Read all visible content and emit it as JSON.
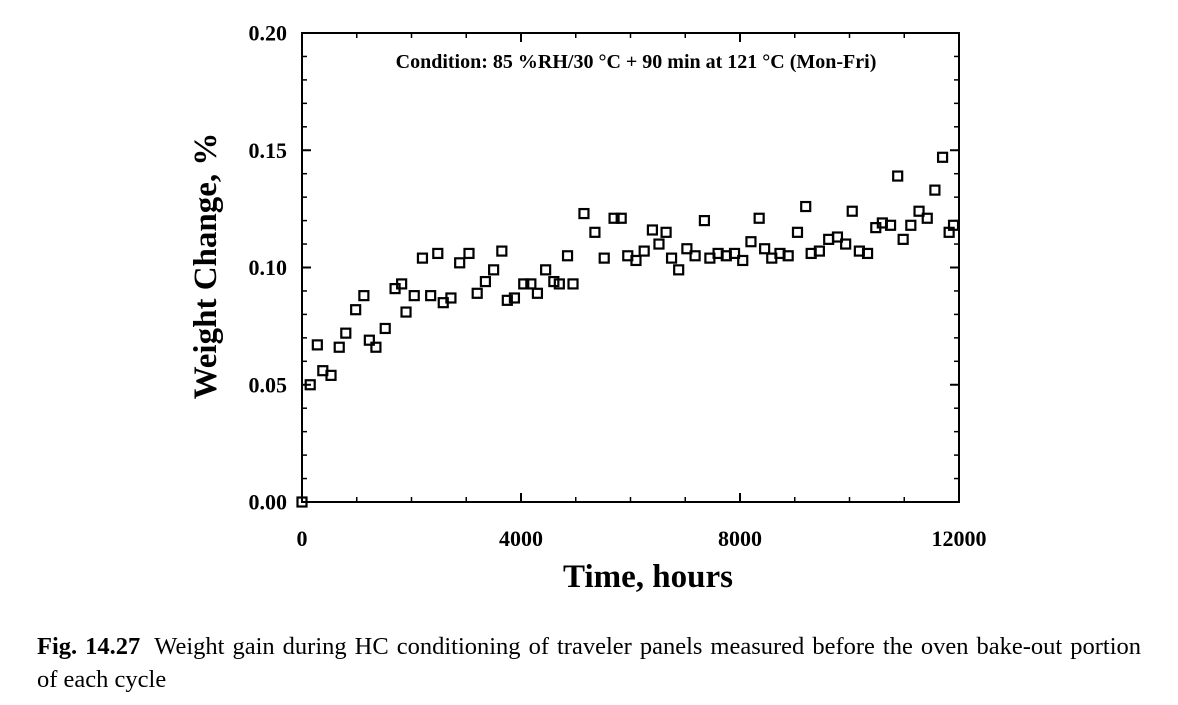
{
  "chart_data": {
    "type": "scatter",
    "title": "",
    "annotation": "Condition: 85 %RH/30 °C  +  90 min at 121 °C (Mon-Fri)",
    "xlabel": "Time, hours",
    "ylabel": "Weight Change, %",
    "xlim": [
      0,
      12000
    ],
    "ylim": [
      0.0,
      0.2
    ],
    "xticks": [
      0,
      4000,
      8000,
      12000
    ],
    "yticks": [
      0.0,
      0.05,
      0.1,
      0.15,
      0.2
    ],
    "xtick_labels": [
      "0",
      "4000",
      "8000",
      "12000"
    ],
    "ytick_labels": [
      "0.00",
      "0.05",
      "0.10",
      "0.15",
      "0.20"
    ],
    "marker": "open-square",
    "series": [
      {
        "name": "Weight change",
        "x": [
          0,
          150,
          280,
          380,
          530,
          680,
          800,
          980,
          1130,
          1230,
          1350,
          1520,
          1700,
          1820,
          1900,
          2050,
          2200,
          2350,
          2480,
          2580,
          2720,
          2880,
          3050,
          3200,
          3350,
          3500,
          3650,
          3750,
          3880,
          4050,
          4180,
          4300,
          4450,
          4600,
          4700,
          4850,
          4950,
          5150,
          5350,
          5520,
          5700,
          5830,
          5950,
          6100,
          6250,
          6400,
          6520,
          6650,
          6750,
          6880,
          7030,
          7180,
          7350,
          7450,
          7600,
          7750,
          7900,
          8050,
          8200,
          8350,
          8450,
          8580,
          8730,
          8880,
          9050,
          9200,
          9300,
          9450,
          9620,
          9780,
          9930,
          10050,
          10180,
          10330,
          10480,
          10600,
          10750,
          10880,
          10980,
          11120,
          11270,
          11420,
          11560,
          11700,
          11820,
          11900
        ],
        "y": [
          0.0,
          0.05,
          0.067,
          0.056,
          0.054,
          0.066,
          0.072,
          0.082,
          0.088,
          0.069,
          0.066,
          0.074,
          0.091,
          0.093,
          0.081,
          0.088,
          0.104,
          0.088,
          0.106,
          0.085,
          0.087,
          0.102,
          0.106,
          0.089,
          0.094,
          0.099,
          0.107,
          0.086,
          0.087,
          0.093,
          0.093,
          0.089,
          0.099,
          0.094,
          0.093,
          0.105,
          0.093,
          0.123,
          0.115,
          0.104,
          0.121,
          0.121,
          0.105,
          0.103,
          0.107,
          0.116,
          0.11,
          0.115,
          0.104,
          0.099,
          0.108,
          0.105,
          0.12,
          0.104,
          0.106,
          0.105,
          0.106,
          0.103,
          0.111,
          0.121,
          0.108,
          0.104,
          0.106,
          0.105,
          0.115,
          0.126,
          0.106,
          0.107,
          0.112,
          0.113,
          0.11,
          0.124,
          0.107,
          0.106,
          0.117,
          0.119,
          0.118,
          0.139,
          0.112,
          0.118,
          0.124,
          0.121,
          0.133,
          0.147,
          0.115,
          0.118
        ]
      }
    ]
  },
  "caption": {
    "fig_num": "Fig. 14.27",
    "text": "Weight gain during HC conditioning of traveler panels measured before the oven bake-out portion of each cycle"
  }
}
